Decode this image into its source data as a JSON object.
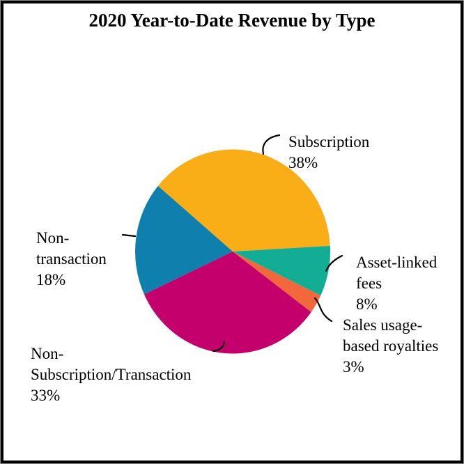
{
  "title": "2020 Year-to-Date Revenue by Type",
  "chart_data": {
    "type": "pie",
    "title": "2020 Year-to-Date Revenue by Type",
    "start_angle_deg": -50,
    "legend": "none",
    "label_style": "outside callouts with leader lines",
    "slices": [
      {
        "name": "Subscription",
        "pct": 38,
        "color": "#F9AE18",
        "label_lines": [
          "Subscription",
          "38%"
        ]
      },
      {
        "name": "Asset-linked fees",
        "pct": 8,
        "color": "#13AD96",
        "label_lines": [
          "Asset-linked",
          "fees",
          "8%"
        ]
      },
      {
        "name": "Sales usage-based royalties",
        "pct": 3,
        "color": "#F2673B",
        "label_lines": [
          "Sales usage-",
          "based royalties",
          "3%"
        ]
      },
      {
        "name": "Non-Subscription/Transaction",
        "pct": 33,
        "color": "#C4006C",
        "label_lines": [
          "Non-",
          "Subscription/Transaction",
          "33%"
        ]
      },
      {
        "name": "Non-transaction",
        "pct": 18,
        "color": "#0F80AD",
        "label_lines": [
          "Non-",
          "transaction",
          "18%"
        ]
      }
    ]
  }
}
